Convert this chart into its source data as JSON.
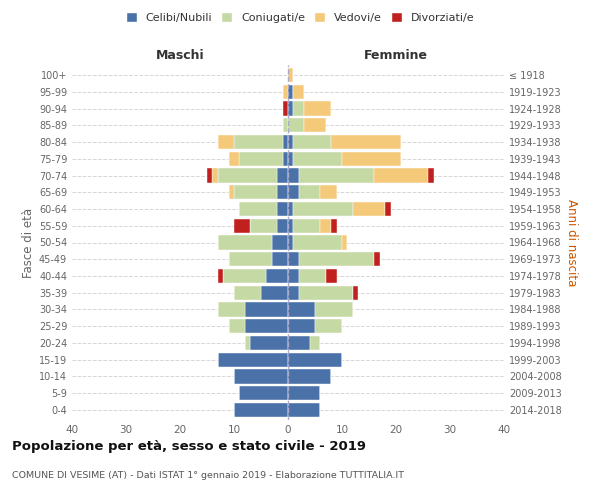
{
  "age_groups": [
    "0-4",
    "5-9",
    "10-14",
    "15-19",
    "20-24",
    "25-29",
    "30-34",
    "35-39",
    "40-44",
    "45-49",
    "50-54",
    "55-59",
    "60-64",
    "65-69",
    "70-74",
    "75-79",
    "80-84",
    "85-89",
    "90-94",
    "95-99",
    "100+"
  ],
  "birth_years": [
    "2014-2018",
    "2009-2013",
    "2004-2008",
    "1999-2003",
    "1994-1998",
    "1989-1993",
    "1984-1988",
    "1979-1983",
    "1974-1978",
    "1969-1973",
    "1964-1968",
    "1959-1963",
    "1954-1958",
    "1949-1953",
    "1944-1948",
    "1939-1943",
    "1934-1938",
    "1929-1933",
    "1924-1928",
    "1919-1923",
    "≤ 1918"
  ],
  "colors": {
    "celibi": "#4a72a8",
    "coniugati": "#c5d9a4",
    "vedovi": "#f5c97a",
    "divorziati": "#c0211e"
  },
  "males": {
    "celibi": [
      10,
      9,
      10,
      13,
      7,
      8,
      8,
      5,
      4,
      3,
      3,
      2,
      2,
      2,
      2,
      1,
      1,
      0,
      0,
      0,
      0
    ],
    "coniugati": [
      0,
      0,
      0,
      0,
      1,
      3,
      5,
      5,
      8,
      8,
      10,
      5,
      7,
      8,
      11,
      8,
      9,
      1,
      0,
      0,
      0
    ],
    "vedovi": [
      0,
      0,
      0,
      0,
      0,
      0,
      0,
      0,
      0,
      0,
      0,
      0,
      0,
      1,
      1,
      2,
      3,
      0,
      0,
      1,
      0
    ],
    "divorziati": [
      0,
      0,
      0,
      0,
      0,
      0,
      0,
      0,
      1,
      0,
      0,
      3,
      0,
      0,
      1,
      0,
      0,
      0,
      1,
      0,
      0
    ]
  },
  "females": {
    "celibi": [
      6,
      6,
      8,
      10,
      4,
      5,
      5,
      2,
      2,
      2,
      1,
      1,
      1,
      2,
      2,
      1,
      1,
      0,
      1,
      1,
      0
    ],
    "coniugati": [
      0,
      0,
      0,
      0,
      2,
      5,
      7,
      10,
      5,
      14,
      9,
      5,
      11,
      4,
      14,
      9,
      7,
      3,
      2,
      0,
      0
    ],
    "vedovi": [
      0,
      0,
      0,
      0,
      0,
      0,
      0,
      0,
      0,
      0,
      1,
      2,
      6,
      3,
      10,
      11,
      13,
      4,
      5,
      2,
      1
    ],
    "divorziati": [
      0,
      0,
      0,
      0,
      0,
      0,
      0,
      1,
      2,
      1,
      0,
      1,
      1,
      0,
      1,
      0,
      0,
      0,
      0,
      0,
      0
    ]
  },
  "xlim": 40,
  "title": "Popolazione per età, sesso e stato civile - 2019",
  "subtitle": "COMUNE DI VESIME (AT) - Dati ISTAT 1° gennaio 2019 - Elaborazione TUTTITALIA.IT",
  "ylabel_left": "Fasce di età",
  "ylabel_right": "Anni di nascita",
  "xlabel_left": "Maschi",
  "xlabel_right": "Femmine"
}
